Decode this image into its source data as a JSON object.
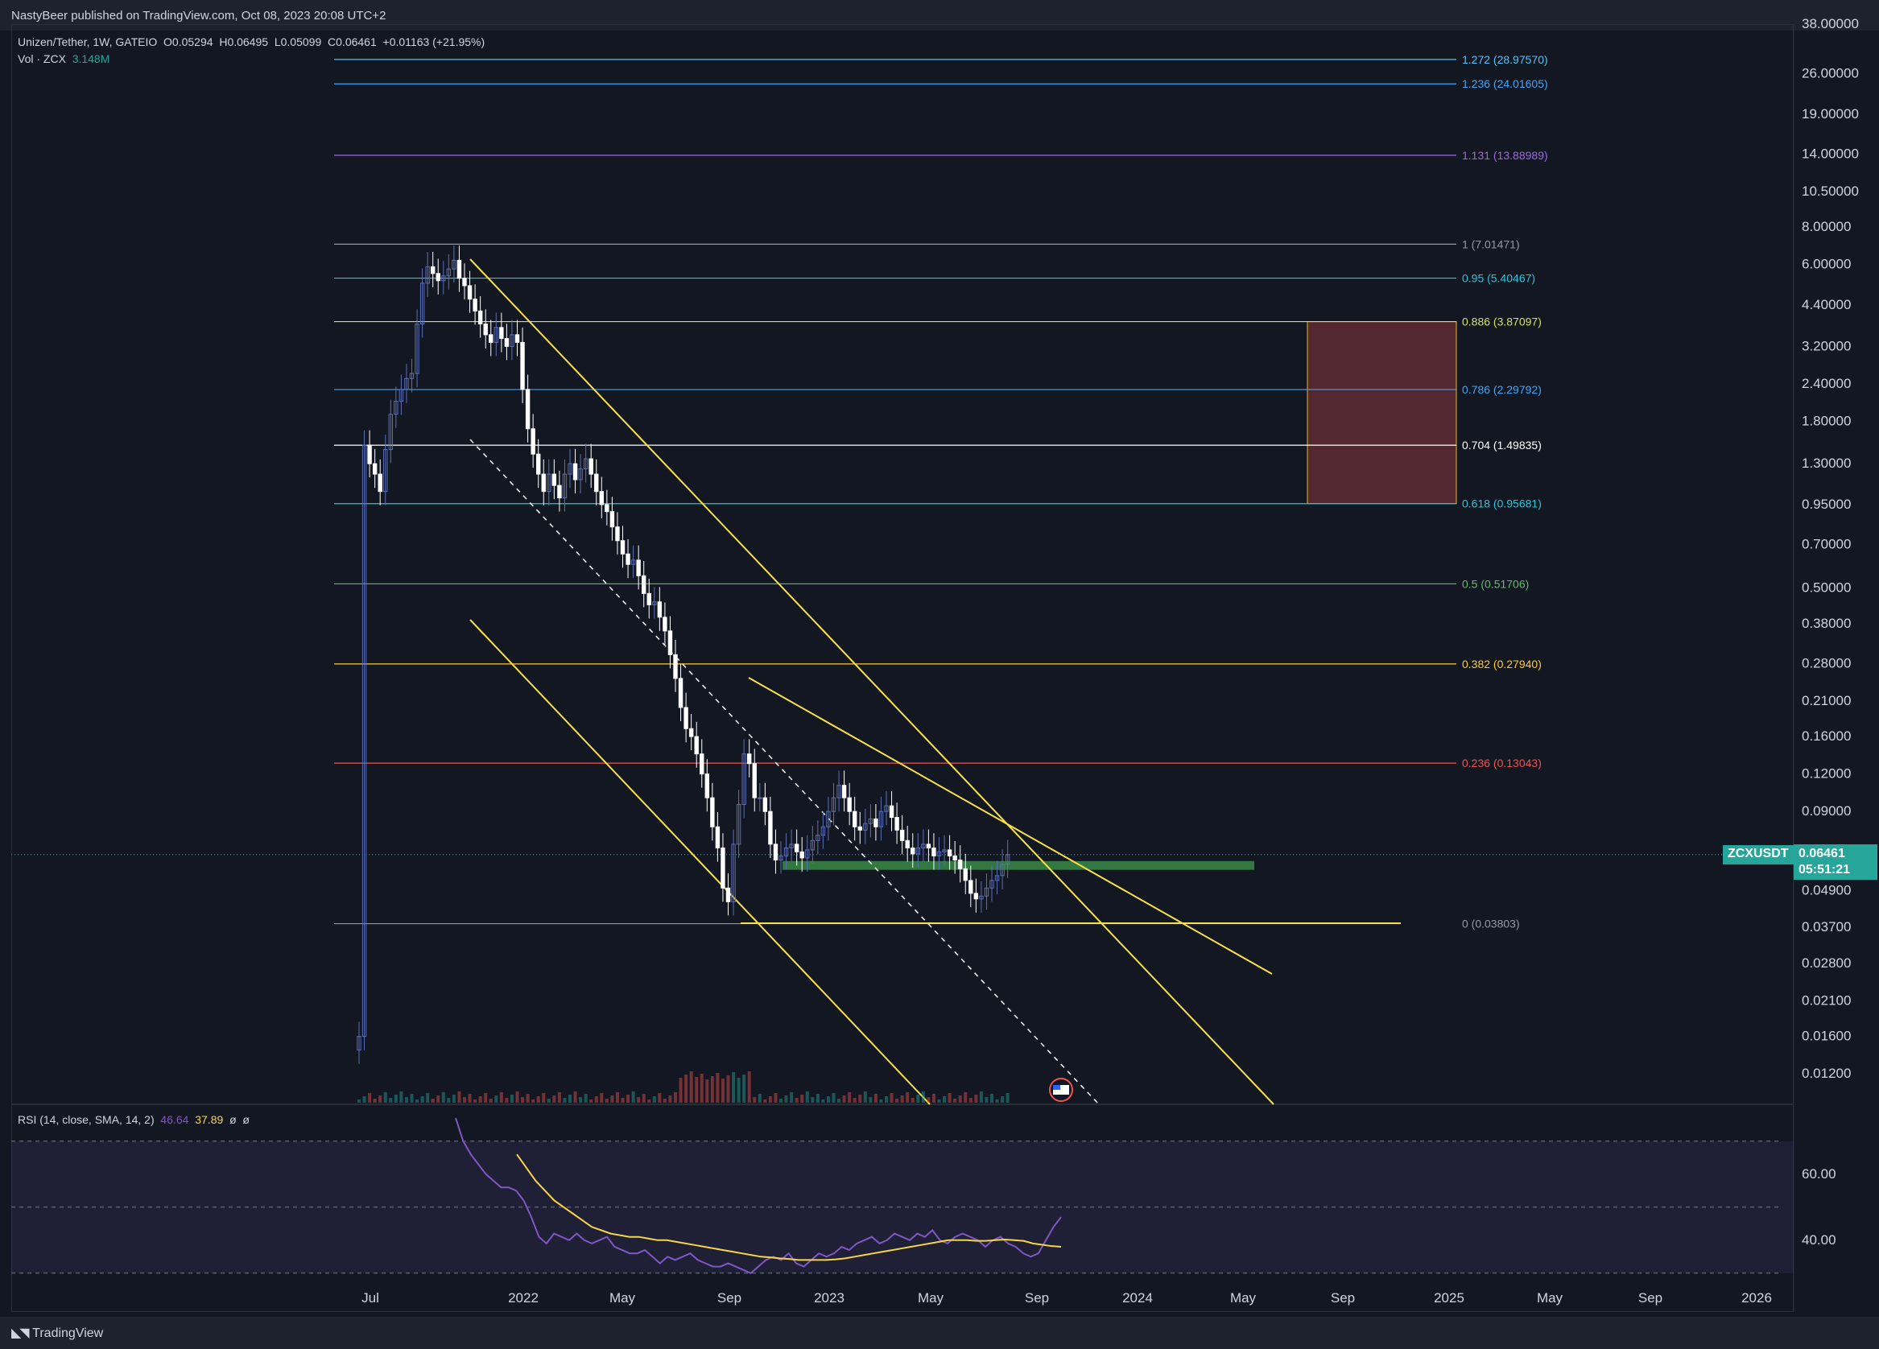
{
  "header": {
    "published": "NastyBeer published on TradingView.com, Oct 08, 2023 20:08 UTC+2"
  },
  "legend": {
    "symbol": "Unizen/Tether, 1W, GATEIO",
    "o_label": "O",
    "o_value": "0.05294",
    "h_label": "H",
    "h_value": "0.06495",
    "l_label": "L",
    "l_value": "0.05099",
    "c_label": "C",
    "c_value": "0.06461",
    "change": "+0.01163 (+21.95%)",
    "vol_label": "Vol · ZCX",
    "vol_value": "3.148M"
  },
  "rsi_legend": {
    "label": "RSI (14, close, SMA, 14, 2)",
    "rsi_value": "46.64",
    "sma_value": "37.89",
    "extra1": "ø",
    "extra2": "ø"
  },
  "last_price": {
    "symbol": "ZCXUSDT",
    "price": "0.06461",
    "countdown": "05:51:21"
  },
  "footer": {
    "logo": "TradingView"
  },
  "colors": {
    "background": "#131722",
    "bull": "#5b6fb5",
    "bear": "#ffffff",
    "trendline": "#f7e14a",
    "rsi_line": "#7e57c2",
    "rsi_sma": "#f7d54a",
    "accent": "#26a69a"
  },
  "chart_data": [
    {
      "type": "candlestick",
      "title": "Unizen/Tether, 1W, GATEIO",
      "y_scale": "log",
      "ylim": [
        0.0095,
        38.0
      ],
      "y_ticks": [
        "38.00000",
        "26.00000",
        "19.00000",
        "14.00000",
        "10.50000",
        "8.00000",
        "6.00000",
        "4.40000",
        "3.20000",
        "2.40000",
        "1.80000",
        "1.30000",
        "0.95000",
        "0.70000",
        "0.50000",
        "0.38000",
        "0.28000",
        "0.21000",
        "0.16000",
        "0.12000",
        "0.09000",
        "0.04900",
        "0.03700",
        "0.02800",
        "0.02100",
        "0.01600",
        "0.01200"
      ],
      "x_ticks": [
        "Jul",
        "2022",
        "May",
        "Sep",
        "2023",
        "May",
        "Sep",
        "2024",
        "May",
        "Sep",
        "2025",
        "May",
        "Sep",
        "2026"
      ],
      "fib_levels": [
        {
          "label": "1.272 (28.97570)",
          "value": 28.9757,
          "color": "#4fc3f7"
        },
        {
          "label": "1.236 (24.01605)",
          "value": 24.01605,
          "color": "#42a5f5"
        },
        {
          "label": "1.131 (13.88989)",
          "value": 13.88989,
          "color": "#9c6ade"
        },
        {
          "label": "1 (7.01471)",
          "value": 7.01471,
          "color": "#9598a1"
        },
        {
          "label": "0.95 (5.40467)",
          "value": 5.40467,
          "color": "#26c6da"
        },
        {
          "label": "0.886 (3.87097)",
          "value": 3.87097,
          "color": "#d4e157"
        },
        {
          "label": "0.786 (2.29792)",
          "value": 2.29792,
          "color": "#42a5f5"
        },
        {
          "label": "0.704 (1.49835)",
          "value": 1.49835,
          "color": "#ffffff"
        },
        {
          "label": "0.618 (0.95681)",
          "value": 0.95681,
          "color": "#26c6da"
        },
        {
          "label": "0.5 (0.51706)",
          "value": 0.51706,
          "color": "#66bb6a"
        },
        {
          "label": "0.382 (0.27940)",
          "value": 0.2794,
          "color": "#ffca28"
        },
        {
          "label": "0.236 (0.13043)",
          "value": 0.13043,
          "color": "#ef5350"
        },
        {
          "label": "0 (0.03803)",
          "value": 0.03803,
          "color": "#9598a1"
        }
      ],
      "target_zone": {
        "from": 0.95681,
        "to": 3.87097,
        "color": "#5a2a33"
      },
      "support_zone": {
        "from": 0.0575,
        "to": 0.0615,
        "color": "#3a8a48"
      },
      "candles_close": [
        0.016,
        1.5,
        1.3,
        1.2,
        1.05,
        1.45,
        1.9,
        2.1,
        2.3,
        2.5,
        2.6,
        3.8,
        5.2,
        5.9,
        5.6,
        5.3,
        5.5,
        5.8,
        6.2,
        5.4,
        5.1,
        4.6,
        4.2,
        3.8,
        3.5,
        3.3,
        3.7,
        3.4,
        3.2,
        3.5,
        3.3,
        2.3,
        1.7,
        1.4,
        1.2,
        1.05,
        1.2,
        1.1,
        1.0,
        1.2,
        1.3,
        1.15,
        1.25,
        1.35,
        1.2,
        1.05,
        0.95,
        0.9,
        0.8,
        0.72,
        0.65,
        0.6,
        0.62,
        0.55,
        0.48,
        0.44,
        0.45,
        0.4,
        0.36,
        0.3,
        0.25,
        0.2,
        0.17,
        0.16,
        0.14,
        0.12,
        0.1,
        0.08,
        0.068,
        0.05,
        0.045,
        0.07,
        0.095,
        0.14,
        0.13,
        0.1,
        0.1,
        0.09,
        0.07,
        0.062,
        0.064,
        0.068,
        0.07,
        0.066,
        0.063,
        0.067,
        0.072,
        0.075,
        0.08,
        0.09,
        0.1,
        0.11,
        0.1,
        0.09,
        0.08,
        0.078,
        0.082,
        0.085,
        0.08,
        0.09,
        0.094,
        0.086,
        0.078,
        0.072,
        0.068,
        0.065,
        0.068,
        0.07,
        0.068,
        0.064,
        0.066,
        0.067,
        0.064,
        0.062,
        0.058,
        0.053,
        0.048,
        0.046,
        0.047,
        0.05,
        0.053,
        0.055,
        0.06,
        0.0646
      ]
    },
    {
      "type": "line",
      "title": "RSI (14, close, SMA, 14, 2)",
      "ylim": [
        28,
        78
      ],
      "y_ticks": [
        "60.00",
        "40.00"
      ],
      "bands": [
        70,
        30,
        50
      ],
      "series": [
        {
          "name": "RSI",
          "values": [
            77,
            70,
            66,
            63,
            60,
            58,
            56,
            56,
            55,
            52,
            47,
            41,
            39,
            42,
            41,
            40,
            42,
            40,
            39,
            40,
            41,
            38,
            37,
            36,
            36,
            37,
            35,
            33,
            35,
            34,
            35,
            36,
            34,
            33,
            32,
            32,
            33,
            32,
            31,
            30,
            32,
            34,
            35,
            34,
            36,
            33,
            32,
            34,
            36,
            35,
            36,
            38,
            37,
            39,
            40,
            41,
            39,
            40,
            42,
            41,
            40,
            42,
            41,
            43,
            40,
            39,
            41,
            42,
            41,
            40,
            38,
            40,
            41,
            39,
            38,
            36,
            35,
            36,
            40,
            44,
            47
          ]
        },
        {
          "name": "SMA",
          "values": [
            66,
            62,
            58,
            55,
            52,
            50,
            48,
            46,
            44,
            43,
            42,
            41.5,
            41,
            41,
            40.5,
            40,
            40,
            39.5,
            39,
            38.5,
            38,
            37.5,
            37,
            36.5,
            36,
            35.5,
            35,
            34.8,
            34.5,
            34.3,
            34,
            34,
            34,
            34,
            34.2,
            34.5,
            35,
            35.5,
            36,
            36.5,
            37,
            37.5,
            38,
            38.5,
            39,
            39.5,
            40,
            40,
            40,
            39.8,
            39.8,
            40,
            40.2,
            40,
            39.8,
            39,
            38.6,
            38.2,
            38
          ]
        }
      ]
    }
  ]
}
